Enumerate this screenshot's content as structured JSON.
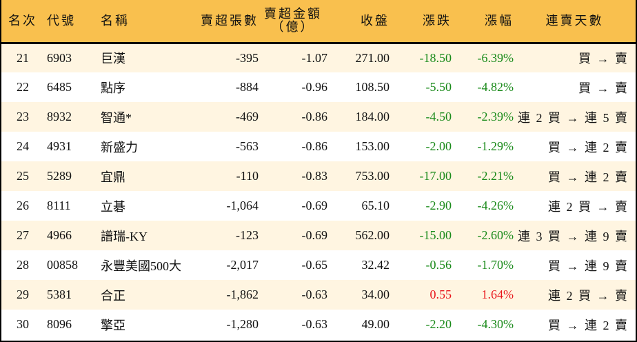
{
  "table": {
    "headers": {
      "rank": "名次",
      "code": "代號",
      "name": "名稱",
      "net_sell_lots": "賣超張數",
      "net_sell_amount_line1": "賣超金額",
      "net_sell_amount_line2": "（億）",
      "close": "收盤",
      "change": "漲跌",
      "change_pct": "漲幅",
      "streak": "連賣天數"
    },
    "rows": [
      {
        "rank": "21",
        "code": "6903",
        "name": "巨漢",
        "lots": "-395",
        "amount": "-1.07",
        "close": "271.00",
        "change": "-18.50",
        "pct": "-6.39%",
        "dir": "down",
        "streak": "買 → 賣"
      },
      {
        "rank": "22",
        "code": "6485",
        "name": "點序",
        "lots": "-884",
        "amount": "-0.96",
        "close": "108.50",
        "change": "-5.50",
        "pct": "-4.82%",
        "dir": "down",
        "streak": "買 → 賣"
      },
      {
        "rank": "23",
        "code": "8932",
        "name": "智通*",
        "lots": "-469",
        "amount": "-0.86",
        "close": "184.00",
        "change": "-4.50",
        "pct": "-2.39%",
        "dir": "down",
        "streak": "連 2 買 → 連 5 賣"
      },
      {
        "rank": "24",
        "code": "4931",
        "name": "新盛力",
        "lots": "-563",
        "amount": "-0.86",
        "close": "153.00",
        "change": "-2.00",
        "pct": "-1.29%",
        "dir": "down",
        "streak": "買 → 連 2 賣"
      },
      {
        "rank": "25",
        "code": "5289",
        "name": "宜鼎",
        "lots": "-110",
        "amount": "-0.83",
        "close": "753.00",
        "change": "-17.00",
        "pct": "-2.21%",
        "dir": "down",
        "streak": "買 → 連 2 賣"
      },
      {
        "rank": "26",
        "code": "8111",
        "name": "立碁",
        "lots": "-1,064",
        "amount": "-0.69",
        "close": "65.10",
        "change": "-2.90",
        "pct": "-4.26%",
        "dir": "down",
        "streak": "連 2 買 → 賣"
      },
      {
        "rank": "27",
        "code": "4966",
        "name": "譜瑞-KY",
        "lots": "-123",
        "amount": "-0.69",
        "close": "562.00",
        "change": "-15.00",
        "pct": "-2.60%",
        "dir": "down",
        "streak": "連 3 買 → 連 9 賣"
      },
      {
        "rank": "28",
        "code": "00858",
        "name": "永豐美國500大",
        "lots": "-2,017",
        "amount": "-0.65",
        "close": "32.42",
        "change": "-0.56",
        "pct": "-1.70%",
        "dir": "down",
        "streak": "買 → 連 9 賣"
      },
      {
        "rank": "29",
        "code": "5381",
        "name": "合正",
        "lots": "-1,862",
        "amount": "-0.63",
        "close": "34.00",
        "change": "0.55",
        "pct": "1.64%",
        "dir": "up",
        "streak": "連 2 買 → 賣"
      },
      {
        "rank": "30",
        "code": "8096",
        "name": "擎亞",
        "lots": "-1,280",
        "amount": "-0.63",
        "close": "49.00",
        "change": "-2.20",
        "pct": "-4.30%",
        "dir": "down",
        "streak": "買 → 連 2 賣"
      }
    ]
  },
  "colors": {
    "header_bg": "#F9C04E",
    "row_alt_bg": "#FFF5E1",
    "down": "#1A8A1A",
    "up": "#E8151B"
  }
}
